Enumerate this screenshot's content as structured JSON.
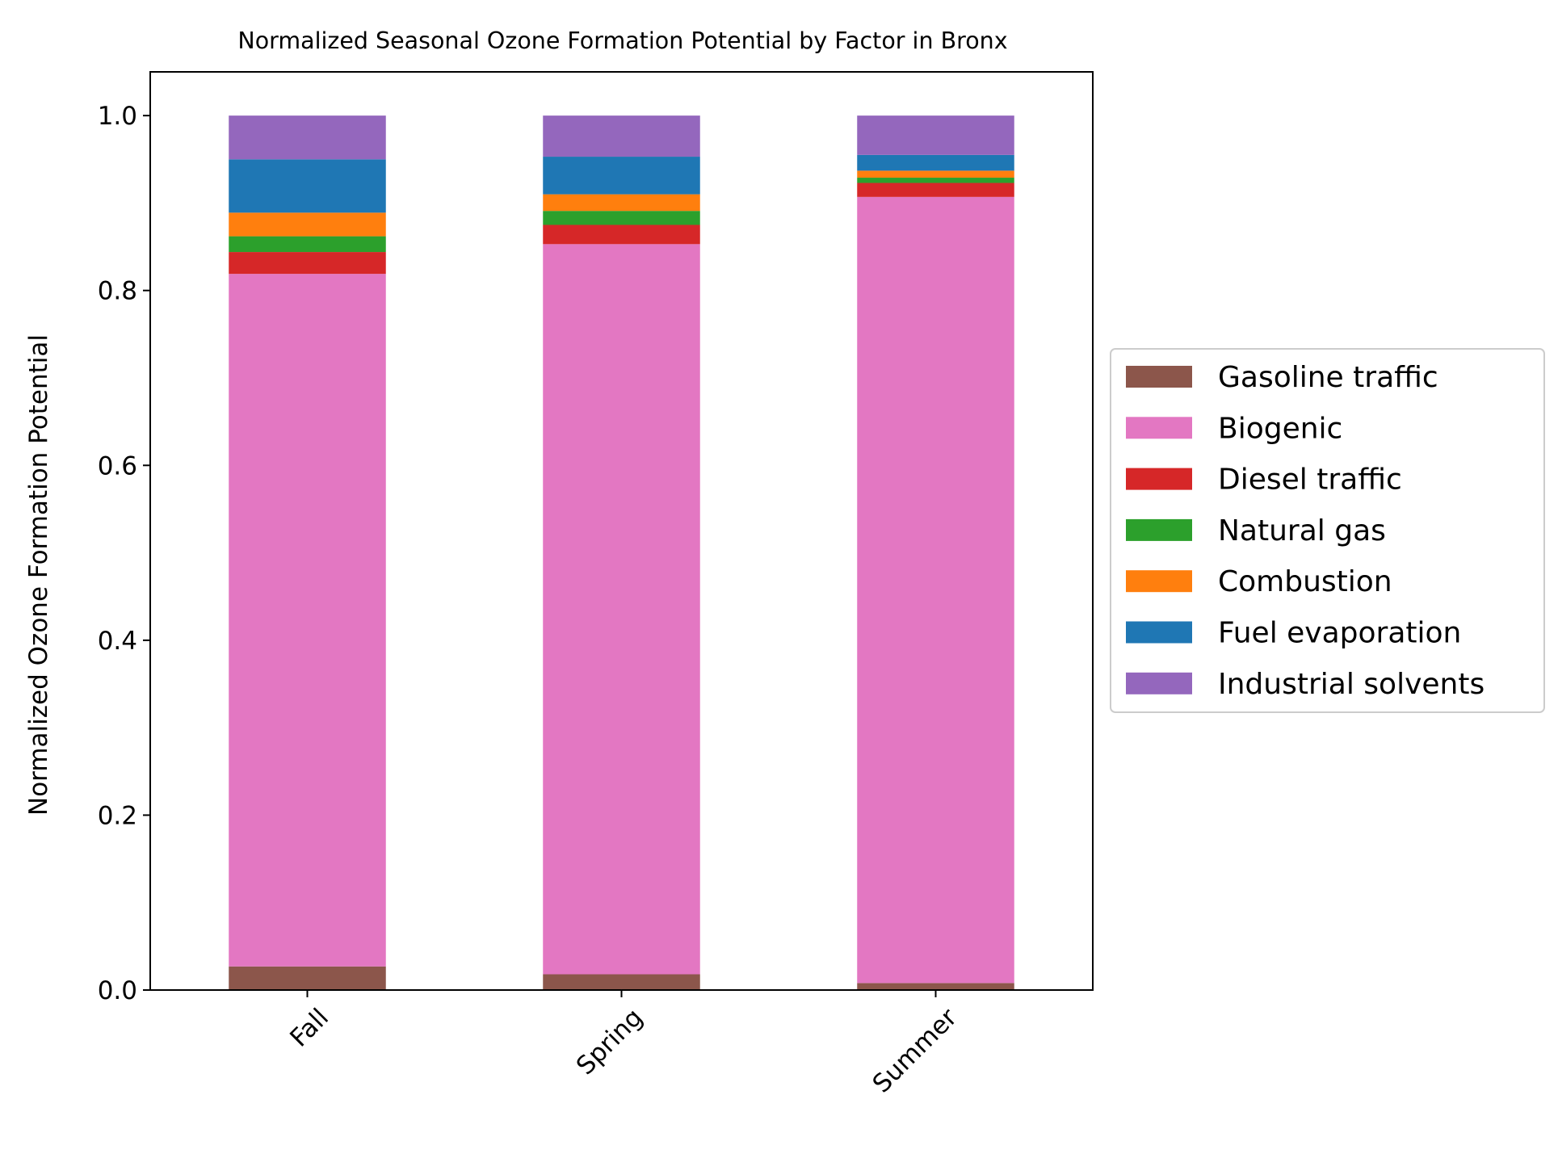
{
  "chart_data": {
    "type": "bar",
    "stacked": true,
    "title": "Normalized Seasonal Ozone Formation Potential by Factor in Bronx",
    "xlabel": "",
    "ylabel": "Normalized Ozone Formation Potential",
    "categories": [
      "Fall",
      "Spring",
      "Summer"
    ],
    "ylim": [
      0,
      1.05
    ],
    "yticks": [
      0.0,
      0.2,
      0.4,
      0.6,
      0.8,
      1.0
    ],
    "ytick_labels": [
      "0.0",
      "0.2",
      "0.4",
      "0.6",
      "0.8",
      "1.0"
    ],
    "grid": false,
    "legend_position": "right, outside plot",
    "series": [
      {
        "name": "Gasoline traffic",
        "color": "#8c564b",
        "values": [
          0.027,
          0.018,
          0.008
        ]
      },
      {
        "name": "Biogenic",
        "color": "#e377c2",
        "values": [
          0.792,
          0.835,
          0.899
        ]
      },
      {
        "name": "Diesel traffic",
        "color": "#d62728",
        "values": [
          0.025,
          0.022,
          0.016
        ]
      },
      {
        "name": "Natural gas",
        "color": "#2ca02c",
        "values": [
          0.018,
          0.016,
          0.006
        ]
      },
      {
        "name": "Combustion",
        "color": "#ff7f0e",
        "values": [
          0.027,
          0.019,
          0.008
        ]
      },
      {
        "name": "Fuel evaporation",
        "color": "#1f77b4",
        "values": [
          0.061,
          0.043,
          0.018
        ]
      },
      {
        "name": "Industrial solvents",
        "color": "#9467bd",
        "values": [
          0.05,
          0.047,
          0.045
        ]
      }
    ]
  }
}
